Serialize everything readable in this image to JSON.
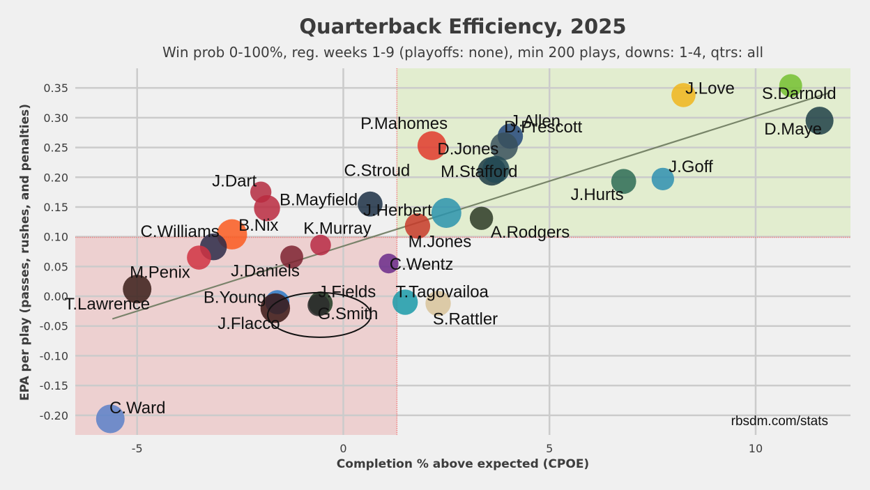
{
  "chart_data": {
    "type": "scatter",
    "title": "Quarterback Efficiency, 2025",
    "subtitle": "Win prob 0-100%, reg. weeks 1-9 (playoffs: none), min 200 plays, downs: 1-4, qtrs: all",
    "xlabel": "Completion % above expected (CPOE)",
    "ylabel": "EPA per play (passes, rushes, and penalties)",
    "xlim": [
      -6.5,
      12.3
    ],
    "ylim": [
      -0.233,
      0.383
    ],
    "x_ticks": [
      -5,
      0,
      5,
      10
    ],
    "y_ticks": [
      0.35,
      0.3,
      0.25,
      0.2,
      0.15,
      0.1,
      0.05,
      0.0,
      -0.05,
      -0.1,
      -0.15,
      -0.2
    ],
    "y_tick_labels": [
      "0.35",
      "0.30",
      "0.25",
      "0.20",
      "0.15",
      "0.10",
      "0.05",
      "0.00",
      "-0.05",
      "-0.10",
      "-0.15",
      "-0.20"
    ],
    "grid": true,
    "threshold": {
      "cpoe": 1.3,
      "epa": 0.099,
      "good_color": "#e2edcf",
      "bad_color": "#edd0d0",
      "line_color": "#f08080"
    },
    "trendline": {
      "x": [
        -5.6,
        11.8
      ],
      "y": [
        -0.038,
        0.342
      ],
      "color": "#6d7a5f"
    },
    "watermark": "rbsdm.com/stats",
    "points": [
      {
        "name": "J.Love",
        "cpoe": 8.25,
        "epa": 0.338,
        "plays": 300,
        "color": "#f0b51c"
      },
      {
        "name": "S.Darnold",
        "cpoe": 10.85,
        "epa": 0.354,
        "plays": 270,
        "color": "#74c030"
      },
      {
        "name": "D.Maye",
        "cpoe": 11.55,
        "epa": 0.295,
        "plays": 400,
        "color": "#1f3f47"
      },
      {
        "name": "J.Allen",
        "cpoe": 4.05,
        "epa": 0.269,
        "plays": 330,
        "color": "#23477a"
      },
      {
        "name": "P.Mahomes",
        "cpoe": 2.15,
        "epa": 0.253,
        "plays": 430,
        "color": "#e03a2c"
      },
      {
        "name": "D.Prescott",
        "cpoe": 3.9,
        "epa": 0.252,
        "plays": 390,
        "color": "#38505c"
      },
      {
        "name": "D.Jones",
        "cpoe": 3.6,
        "epa": 0.21,
        "plays": 420,
        "color": "#1c3a44"
      },
      {
        "name": "M.Stafford",
        "cpoe": 3.7,
        "epa": 0.213,
        "plays": 380,
        "color": "#234a55"
      },
      {
        "name": "J.Goff",
        "cpoe": 7.75,
        "epa": 0.197,
        "plays": 260,
        "color": "#2f8fb0"
      },
      {
        "name": "J.Hurts",
        "cpoe": 6.8,
        "epa": 0.193,
        "plays": 320,
        "color": "#2d6b55"
      },
      {
        "name": "J.Dart",
        "cpoe": -2.0,
        "epa": 0.175,
        "plays": 230,
        "color": "#b42b40"
      },
      {
        "name": "C.Stroud",
        "cpoe": 0.65,
        "epa": 0.155,
        "plays": 320,
        "color": "#1b2f44"
      },
      {
        "name": "B.Mayfield",
        "cpoe": -1.85,
        "epa": 0.148,
        "plays": 350,
        "color": "#ba2a40"
      },
      {
        "name": "J.Herbert",
        "cpoe": 2.5,
        "epa": 0.14,
        "plays": 460,
        "color": "#2b93ad"
      },
      {
        "name": "A.Rodgers",
        "cpoe": 3.35,
        "epa": 0.131,
        "plays": 280,
        "color": "#2d3a26"
      },
      {
        "name": "M.Jones",
        "cpoe": 1.8,
        "epa": 0.118,
        "plays": 330,
        "color": "#c83a2a"
      },
      {
        "name": "B.Nix",
        "cpoe": -2.7,
        "epa": 0.104,
        "plays": 470,
        "color": "#fa5a20"
      },
      {
        "name": "K.Murray",
        "cpoe": -0.55,
        "epa": 0.086,
        "plays": 220,
        "color": "#b72a44"
      },
      {
        "name": "C.Williams",
        "cpoe": -3.15,
        "epa": 0.083,
        "plays": 370,
        "color": "#2c2a48"
      },
      {
        "name": "J.Daniels",
        "cpoe": -1.25,
        "epa": 0.066,
        "plays": 270,
        "color": "#7c2230"
      },
      {
        "name": "M.Penix",
        "cpoe": -3.5,
        "epa": 0.065,
        "plays": 300,
        "color": "#d03342"
      },
      {
        "name": "C.Wentz",
        "cpoe": 1.1,
        "epa": 0.055,
        "plays": 200,
        "color": "#6a2a8a"
      },
      {
        "name": "T.Lawrence",
        "cpoe": -5.0,
        "epa": 0.012,
        "plays": 420,
        "color": "#3a1d19"
      },
      {
        "name": "B.Young",
        "cpoe": -1.6,
        "epa": -0.01,
        "plays": 300,
        "color": "#2a7ac8"
      },
      {
        "name": "J.Fields",
        "cpoe": -0.55,
        "epa": -0.012,
        "plays": 300,
        "color": "#1f3a22"
      },
      {
        "name": "T.Tagovailoa",
        "cpoe": 1.5,
        "epa": -0.01,
        "plays": 330,
        "color": "#1a9aa8"
      },
      {
        "name": "S.Rattler",
        "cpoe": 2.3,
        "epa": -0.012,
        "plays": 330,
        "color": "#d8c39a"
      },
      {
        "name": "J.Flacco",
        "cpoe": -1.65,
        "epa": -0.02,
        "plays": 450,
        "color": "#3a1614"
      },
      {
        "name": "G.Smith",
        "cpoe": -0.6,
        "epa": -0.015,
        "plays": 250,
        "color": "#2b2b2b"
      },
      {
        "name": "C.Ward",
        "cpoe": -5.65,
        "epa": -0.206,
        "plays": 420,
        "color": "#5a80c8"
      }
    ],
    "highlight": {
      "name": "G.Smith"
    }
  }
}
